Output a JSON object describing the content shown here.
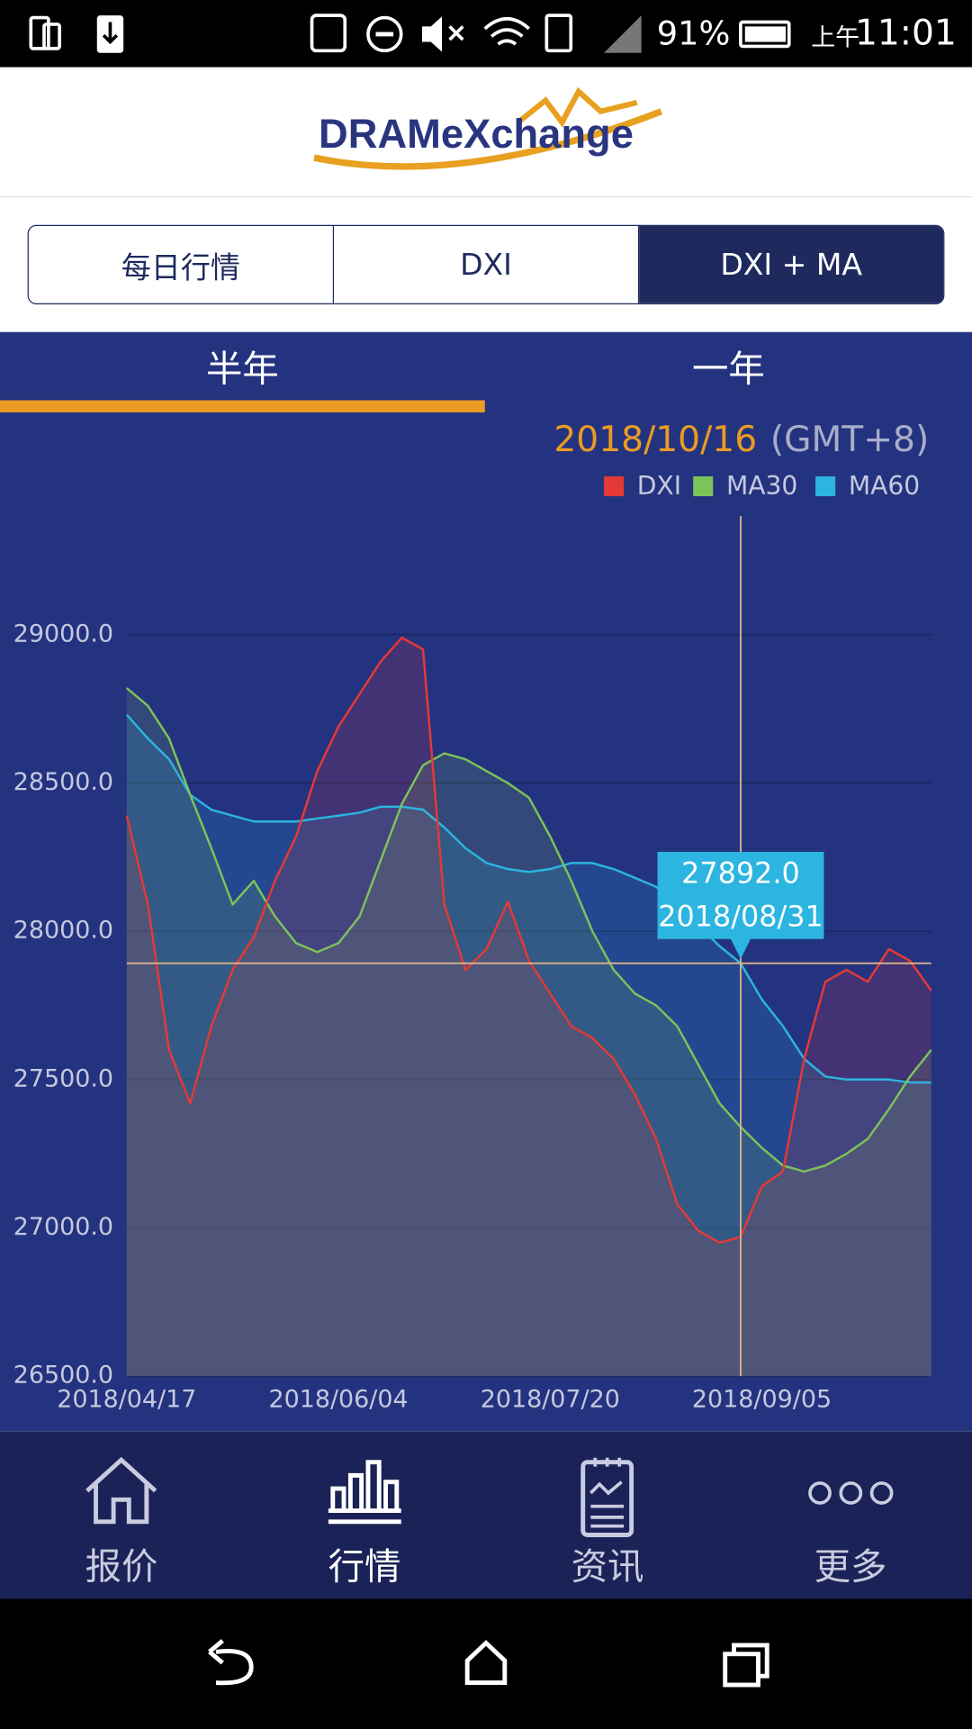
{
  "status_bar": {
    "battery": "91%",
    "period": "上午",
    "time": "11:01"
  },
  "header": {
    "logo": "DRAMeXchange"
  },
  "tabs": [
    "每日行情",
    "DXI",
    "DXI + MA"
  ],
  "range_tabs": [
    "半年",
    "一年"
  ],
  "nav": [
    "报价",
    "行情",
    "资讯",
    "更多"
  ],
  "chart_data": {
    "type": "line",
    "date": "2018/10/16",
    "timezone": "(GMT+8)",
    "categories": [
      "2018/04/17",
      null,
      null,
      null,
      null,
      null,
      null,
      null,
      null,
      null,
      "2018/06/04",
      null,
      null,
      null,
      null,
      null,
      null,
      null,
      null,
      null,
      "2018/07/20",
      null,
      null,
      null,
      null,
      null,
      null,
      null,
      null,
      null,
      "2018/09/05",
      null,
      null,
      null,
      null,
      null,
      null,
      null,
      null
    ],
    "series": [
      {
        "name": "DXI",
        "color": "#e53935",
        "values": [
          28390,
          28090,
          27600,
          27420,
          27680,
          27870,
          27980,
          28170,
          28320,
          28540,
          28690,
          28800,
          28910,
          28990,
          28950,
          28090,
          27870,
          27940,
          28100,
          27900,
          27790,
          27680,
          27640,
          27570,
          27450,
          27300,
          27080,
          26990,
          26950,
          26970,
          27140,
          27190,
          27570,
          27830,
          27870,
          27830,
          27940,
          27900,
          27800
        ]
      },
      {
        "name": "MA30",
        "color": "#7cc35a",
        "values": [
          28820,
          28760,
          28650,
          28460,
          28280,
          28090,
          28170,
          28050,
          27960,
          27930,
          27960,
          28050,
          28240,
          28430,
          28560,
          28600,
          28580,
          28540,
          28500,
          28450,
          28320,
          28170,
          28000,
          27870,
          27790,
          27750,
          27680,
          27550,
          27420,
          27340,
          27270,
          27210,
          27190,
          27210,
          27250,
          27300,
          27400,
          27510,
          27600
        ]
      },
      {
        "name": "MA60",
        "color": "#2bb5e0",
        "values": [
          28730,
          28650,
          28580,
          28460,
          28410,
          28390,
          28370,
          28370,
          28370,
          28380,
          28390,
          28400,
          28420,
          28420,
          28410,
          28350,
          28280,
          28230,
          28210,
          28200,
          28210,
          28230,
          28230,
          28210,
          28180,
          28150,
          28090,
          28020,
          27950,
          27892,
          27770,
          27680,
          27570,
          27510,
          27500,
          27500,
          27500,
          27490,
          27490
        ]
      }
    ],
    "ylim": [
      26500,
      29400
    ],
    "yticks": [
      {
        "value": 26500,
        "label": "26500.0"
      },
      {
        "value": 27000,
        "label": "27000.0"
      },
      {
        "value": 27500,
        "label": "27500.0"
      },
      {
        "value": 28000,
        "label": "28000.0"
      },
      {
        "value": 28500,
        "label": "28500.0"
      },
      {
        "value": 29000,
        "label": "29000.0"
      }
    ],
    "grid": true,
    "tooltip": {
      "value": 27892,
      "value_label": "27892.0",
      "date": "2018/08/31"
    }
  }
}
